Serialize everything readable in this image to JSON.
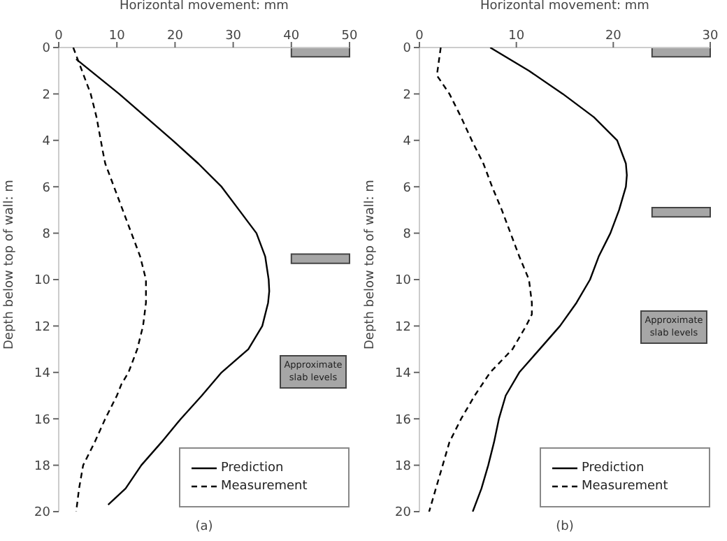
{
  "chart_data": [
    {
      "type": "line",
      "xlabel": "Horizontal movement: mm",
      "ylabel": "Depth below top of wall: m",
      "xlim": [
        0,
        50
      ],
      "xticks": [
        0,
        10,
        20,
        30,
        40,
        50
      ],
      "ylim": [
        20,
        0
      ],
      "yticks": [
        0,
        2,
        4,
        6,
        8,
        10,
        12,
        14,
        16,
        18,
        20
      ],
      "grid": false,
      "legend": "bottom right",
      "marker": "none",
      "series": [
        {
          "name": "Prediction",
          "color": "#000000",
          "line_style": "solid",
          "x": [
            3,
            10.4,
            15,
            19.6,
            24,
            28,
            31,
            34,
            35.5,
            36.1,
            36.2,
            36,
            35,
            32.6,
            28,
            24.6,
            21,
            17.7,
            14.2,
            11.5,
            8.5
          ],
          "values": [
            0.5,
            2,
            3,
            4,
            5,
            6,
            7,
            8,
            9,
            10,
            10.5,
            11,
            12,
            13,
            14,
            15,
            16,
            17,
            18,
            19,
            19.7
          ]
        },
        {
          "name": "Measurement",
          "color": "#000000",
          "line_style": "dashed",
          "x": [
            2.5,
            4,
            5.5,
            6.5,
            7.6,
            8,
            9.5,
            11,
            12.5,
            14,
            15,
            15,
            14.5,
            13.5,
            12,
            10.8,
            10,
            8,
            6.2,
            4.2,
            3.5,
            3
          ],
          "values": [
            0,
            1,
            2,
            3,
            4.5,
            5,
            6,
            7,
            8,
            9,
            10,
            11,
            12,
            13,
            14,
            14.5,
            15,
            16,
            17,
            18,
            19,
            20
          ]
        }
      ],
      "bands": [
        {
          "axis": "y",
          "from": 0,
          "to": 0.4,
          "color": "#a6a6a6"
        },
        {
          "axis": "y",
          "from": 8.9,
          "to": 9.3,
          "color": "#a6a6a6"
        }
      ],
      "annotations": [
        "Approximate slab levels",
        "(a)"
      ]
    },
    {
      "type": "line",
      "xlabel": "Horizontal movement: mm",
      "ylabel": "Depth below top of wall: m",
      "xlim": [
        0,
        30
      ],
      "xticks": [
        0,
        10,
        20,
        30
      ],
      "ylim": [
        20,
        0
      ],
      "yticks": [
        0,
        2,
        4,
        6,
        8,
        10,
        12,
        14,
        16,
        18,
        20
      ],
      "grid": false,
      "legend": "bottom right",
      "marker": "none",
      "series": [
        {
          "name": "Prediction",
          "color": "#000000",
          "line_style": "solid",
          "x": [
            7.3,
            11.3,
            14.8,
            18,
            20.4,
            21.3,
            21.4,
            21.3,
            20.6,
            19.7,
            18.5,
            17.6,
            16.2,
            14.5,
            12.4,
            10.3,
            8.9,
            8.2,
            7.7,
            7.1,
            6.4,
            5.5
          ],
          "values": [
            0,
            1,
            2,
            3,
            4,
            5,
            5.5,
            6,
            7,
            8,
            9,
            10,
            11,
            12,
            13,
            14,
            15,
            16,
            17,
            18,
            19,
            20
          ]
        },
        {
          "name": "Measurement",
          "color": "#000000",
          "line_style": "dashed",
          "x": [
            2.2,
            1.8,
            3.1,
            4.3,
            5.4,
            6.6,
            7.5,
            8.5,
            9.4,
            10.3,
            11.3,
            11.6,
            11.6,
            11,
            9.6,
            7.3,
            5.7,
            4.3,
            3.1,
            2.4,
            1.7,
            1
          ],
          "values": [
            0,
            1.2,
            2,
            3,
            4,
            5,
            6,
            7,
            8,
            9,
            10,
            11,
            11.5,
            12,
            13,
            14,
            15,
            16,
            17,
            18,
            19,
            20
          ]
        }
      ],
      "bands": [
        {
          "axis": "y",
          "from": 0,
          "to": 0.4,
          "color": "#a6a6a6"
        },
        {
          "axis": "y",
          "from": 6.9,
          "to": 7.3,
          "color": "#a6a6a6"
        }
      ],
      "annotations": [
        "Approximate slab levels",
        "(b)"
      ]
    }
  ]
}
